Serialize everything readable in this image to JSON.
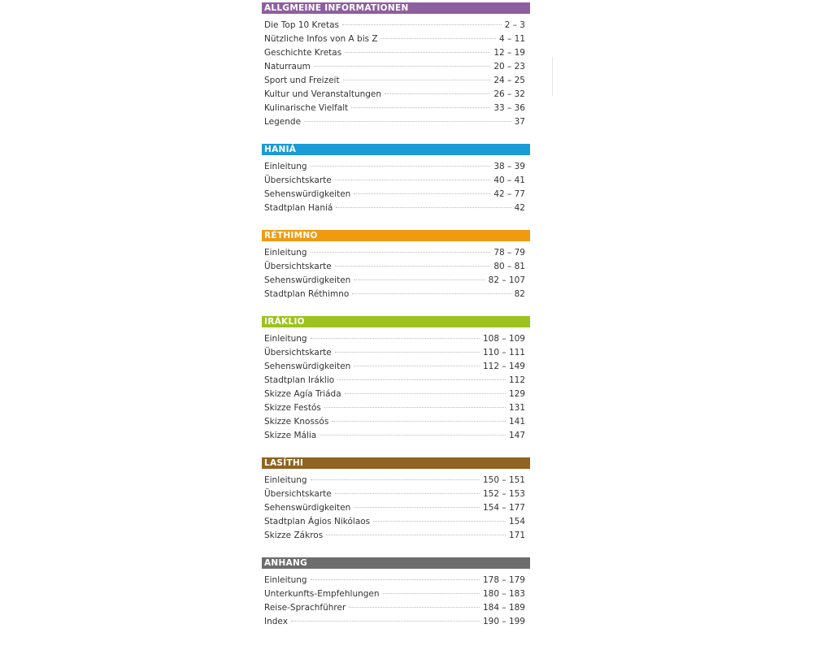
{
  "sections": [
    {
      "title": "ALLGMEINE INFORMATIONEN",
      "color": "#8e5fa0",
      "items": [
        {
          "label": "Die Top 10 Kretas",
          "pages": "2 – 3"
        },
        {
          "label": "Nützliche Infos von A bis Z",
          "pages": "4  – 11"
        },
        {
          "label": "Geschichte Kretas",
          "pages": "12 – 19"
        },
        {
          "label": "Naturraum",
          "pages": "20 – 23"
        },
        {
          "label": "Sport und Freizeit",
          "pages": "24 – 25"
        },
        {
          "label": "Kultur und Veranstaltungen",
          "pages": "26 – 32"
        },
        {
          "label": "Kulinarische Vielfalt",
          "pages": "33 – 36"
        },
        {
          "label": "Legende",
          "pages": "37"
        }
      ]
    },
    {
      "title": "HANIÁ",
      "color": "#1a9ad6",
      "items": [
        {
          "label": "Einleitung",
          "pages": "38 – 39"
        },
        {
          "label": "Übersichtskarte",
          "pages": "40 – 41"
        },
        {
          "label": "Sehenswürdigkeiten",
          "pages": "42 – 77"
        },
        {
          "label": "Stadtplan Haniá",
          "pages": "42"
        }
      ]
    },
    {
      "title": "RÉTHIMNO",
      "color": "#f09a12",
      "items": [
        {
          "label": "Einleitung",
          "pages": "78 – 79"
        },
        {
          "label": "Übersichtskarte",
          "pages": "80 – 81"
        },
        {
          "label": "Sehenswürdigkeiten",
          "pages": "82 – 107"
        },
        {
          "label": "Stadtplan Réthimno",
          "pages": "82"
        }
      ]
    },
    {
      "title": "IRÁKLIO",
      "color": "#9cc31e",
      "items": [
        {
          "label": "Einleitung",
          "pages": "108 – 109"
        },
        {
          "label": "Übersichtskarte",
          "pages": "110 – 111"
        },
        {
          "label": "Sehenswürdigkeiten",
          "pages": "112 – 149"
        },
        {
          "label": "Stadtplan Iráklio",
          "pages": "112"
        },
        {
          "label": "Skizze Agía Triáda",
          "pages": "129"
        },
        {
          "label": "Skizze Festós",
          "pages": "131"
        },
        {
          "label": "Skizze Knossós",
          "pages": "141"
        },
        {
          "label": "Skizze Mália",
          "pages": "147"
        }
      ]
    },
    {
      "title": "LASÍTHI",
      "color": "#8f6420",
      "items": [
        {
          "label": "Einleitung",
          "pages": "150 – 151"
        },
        {
          "label": "Übersichtskarte",
          "pages": "152 – 153"
        },
        {
          "label": "Sehenswürdigkeiten",
          "pages": "154 – 177"
        },
        {
          "label": "Stadtplan Ágios Nikólaos",
          "pages": "154"
        },
        {
          "label": "Skizze Zákros",
          "pages": "171"
        }
      ]
    },
    {
      "title": "ANHANG",
      "color": "#6d6d6d",
      "items": [
        {
          "label": "Einleitung",
          "pages": "178 – 179"
        },
        {
          "label": "Unterkunfts-Empfehlungen",
          "pages": "180 – 183"
        },
        {
          "label": "Reise-Sprachführer",
          "pages": "184 – 189"
        },
        {
          "label": "Index",
          "pages": "190 – 199"
        }
      ]
    }
  ]
}
